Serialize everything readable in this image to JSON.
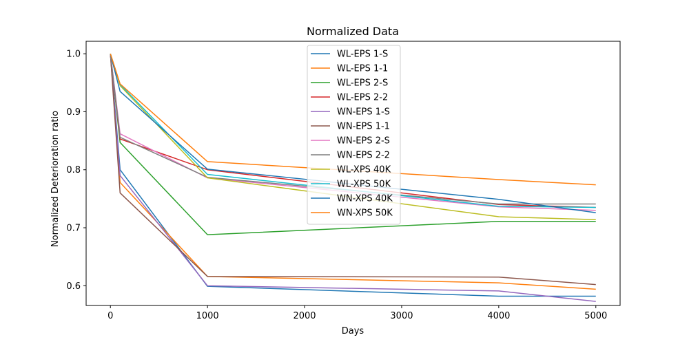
{
  "chart_data": {
    "type": "line",
    "title": "Normalized Data",
    "xlabel": "Days",
    "ylabel": "Normalized Deterioration ratio",
    "xlim": [
      -250,
      5250
    ],
    "ylim": [
      0.566,
      1.0215
    ],
    "xticks": [
      0,
      1000,
      2000,
      3000,
      4000,
      5000
    ],
    "xtick_labels": [
      "0",
      "1000",
      "2000",
      "3000",
      "4000",
      "5000"
    ],
    "yticks": [
      0.6,
      0.7,
      0.8,
      0.9,
      1.0
    ],
    "ytick_labels": [
      "0.6",
      "0.7",
      "0.8",
      "0.9",
      "1.0"
    ],
    "grid": false,
    "legend_position": "top-center",
    "x": [
      0,
      100,
      1000,
      4000,
      5000
    ],
    "series": [
      {
        "name": "WL-EPS 1-S",
        "color": "#1f77b4",
        "values": [
          1.0,
          0.8,
          0.599,
          0.582,
          0.582
        ]
      },
      {
        "name": "WL-EPS 1-1",
        "color": "#ff7f0e",
        "values": [
          1.0,
          0.778,
          0.616,
          0.605,
          0.594
        ]
      },
      {
        "name": "WL-EPS 2-S",
        "color": "#2ca02c",
        "values": [
          1.0,
          0.847,
          0.688,
          0.711,
          0.711
        ]
      },
      {
        "name": "WL-EPS 2-2",
        "color": "#d62728",
        "values": [
          1.0,
          0.853,
          0.8,
          0.74,
          0.735
        ]
      },
      {
        "name": "WN-EPS 1-S",
        "color": "#9467bd",
        "values": [
          1.0,
          0.79,
          0.6,
          0.591,
          0.573
        ]
      },
      {
        "name": "WN-EPS 1-1",
        "color": "#8c564b",
        "values": [
          1.0,
          0.76,
          0.616,
          0.615,
          0.602
        ]
      },
      {
        "name": "WN-EPS 2-S",
        "color": "#e377c2",
        "values": [
          1.0,
          0.862,
          0.786,
          0.736,
          0.73
        ]
      },
      {
        "name": "WN-EPS 2-2",
        "color": "#7f7f7f",
        "values": [
          1.0,
          0.856,
          0.787,
          0.741,
          0.741
        ]
      },
      {
        "name": "WL-XPS 40K",
        "color": "#bcbd22",
        "values": [
          1.0,
          0.945,
          0.786,
          0.719,
          0.714
        ]
      },
      {
        "name": "WL-XPS 50K",
        "color": "#17becf",
        "values": [
          1.0,
          0.947,
          0.792,
          0.737,
          0.735
        ]
      },
      {
        "name": "WN-XPS 40K",
        "color": "#1f77b4",
        "values": [
          1.0,
          0.935,
          0.801,
          0.749,
          0.726
        ]
      },
      {
        "name": "WN-XPS 50K",
        "color": "#ff7f0e",
        "values": [
          1.0,
          0.948,
          0.814,
          0.783,
          0.774
        ]
      }
    ]
  }
}
